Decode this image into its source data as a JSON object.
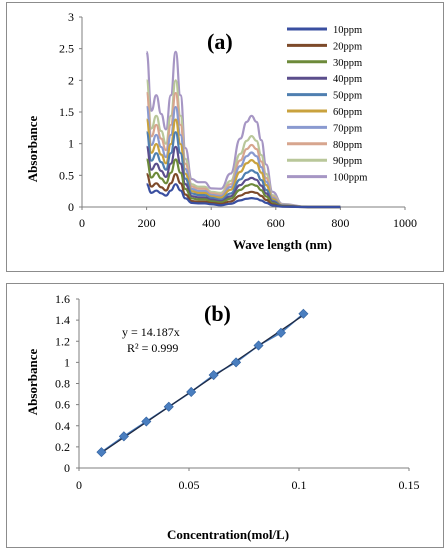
{
  "chart_data": [
    {
      "type": "line",
      "title": "(a)",
      "xlabel": "Wave length (nm)",
      "ylabel": "Absorbance",
      "xlim": [
        0,
        1000
      ],
      "ylim": [
        0,
        3
      ],
      "xticks": [
        "0",
        "200",
        "400",
        "600",
        "800",
        "1000"
      ],
      "yticks": [
        "0",
        "0.5",
        "1",
        "1.5",
        "2",
        "2.5",
        "3"
      ],
      "grid": false,
      "legend_position": "right",
      "x": [
        200,
        215,
        230,
        245,
        260,
        275,
        290,
        305,
        320,
        340,
        360,
        380,
        400,
        430,
        460,
        490,
        510,
        525,
        540,
        555,
        570,
        590,
        620,
        700,
        800
      ],
      "shape": [
        1.0,
        0.62,
        0.72,
        0.6,
        0.5,
        0.72,
        1.0,
        0.72,
        0.38,
        0.18,
        0.16,
        0.16,
        0.12,
        0.12,
        0.22,
        0.45,
        0.56,
        0.6,
        0.56,
        0.44,
        0.28,
        0.1,
        0.02,
        0.0,
        0.0
      ],
      "series": [
        {
          "name": "10ppm",
          "color": "#3a4fa0",
          "peak_uv": 0.36,
          "peak_vis": 0.14
        },
        {
          "name": "20ppm",
          "color": "#7d4a2a",
          "peak_uv": 0.52,
          "peak_vis": 0.24
        },
        {
          "name": "30ppm",
          "color": "#6d8a3a",
          "peak_uv": 0.75,
          "peak_vis": 0.36
        },
        {
          "name": "40ppm",
          "color": "#5b4e8c",
          "peak_uv": 0.95,
          "peak_vis": 0.46
        },
        {
          "name": "50ppm",
          "color": "#4f7fb0",
          "peak_uv": 1.18,
          "peak_vis": 0.58
        },
        {
          "name": "60ppm",
          "color": "#c9a23e",
          "peak_uv": 1.38,
          "peak_vis": 0.74
        },
        {
          "name": "70ppm",
          "color": "#8a9ad0",
          "peak_uv": 1.58,
          "peak_vis": 0.86
        },
        {
          "name": "80ppm",
          "color": "#d7a58e",
          "peak_uv": 1.8,
          "peak_vis": 0.98
        },
        {
          "name": "90ppm",
          "color": "#b9c79a",
          "peak_uv": 2.0,
          "peak_vis": 1.12
        },
        {
          "name": "100ppm",
          "color": "#a696c4",
          "peak_uv": 2.45,
          "peak_vis": 1.44
        }
      ]
    },
    {
      "type": "scatter",
      "title": "(b)",
      "xlabel": "Concentration(mol/L)",
      "ylabel": "Absorbance",
      "xlim": [
        0,
        0.15
      ],
      "ylim": [
        0,
        1.6
      ],
      "xticks": [
        "0",
        "0.05",
        "0.1",
        "0.15"
      ],
      "yticks": [
        "0",
        "0.2",
        "0.4",
        "0.6",
        "0.8",
        "1",
        "1.2",
        "1.4",
        "1.6"
      ],
      "grid": false,
      "x": [
        0.0102,
        0.0204,
        0.0306,
        0.0408,
        0.051,
        0.0612,
        0.0714,
        0.0816,
        0.0918,
        0.102
      ],
      "y": [
        0.15,
        0.3,
        0.44,
        0.58,
        0.72,
        0.88,
        1.0,
        1.16,
        1.28,
        1.46
      ],
      "trendline": {
        "slope": 14.187,
        "equation": "y = 14.187x",
        "r2_label": "R² = 0.999"
      },
      "marker_color": "#4a7ebf",
      "line_color": "#1f2a44"
    }
  ]
}
